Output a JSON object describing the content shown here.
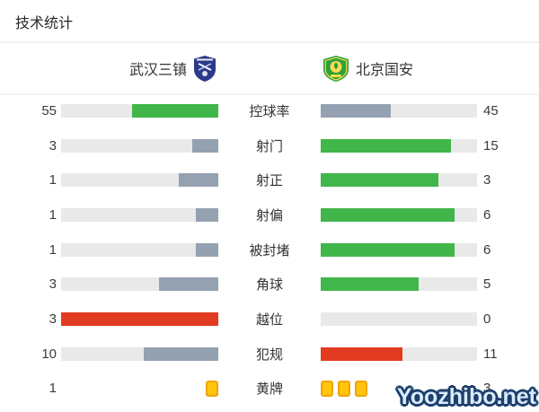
{
  "title": "技术统计",
  "teams": {
    "home": {
      "name": "武汉三镇",
      "badge": "wuhan-three-towns-crest",
      "badge_color": "#2c3a8c"
    },
    "away": {
      "name": "北京国安",
      "badge": "beijing-guoan-crest",
      "badge_color": "#2ba13c"
    }
  },
  "colors": {
    "green": "#41b64a",
    "gray_blue": "#94a1b1",
    "red": "#e13b21",
    "none": "transparent",
    "track": "#e9e9e9",
    "yellow_card_fill": "#ffc50a",
    "yellow_card_border": "#f0a40e"
  },
  "rows": [
    {
      "label": "控球率",
      "home": {
        "value": "55",
        "pct": 55,
        "color": "green"
      },
      "away": {
        "value": "45",
        "pct": 45,
        "color": "gray_blue"
      }
    },
    {
      "label": "射门",
      "home": {
        "value": "3",
        "pct": 16.7,
        "color": "gray_blue"
      },
      "away": {
        "value": "15",
        "pct": 83.3,
        "color": "green"
      }
    },
    {
      "label": "射正",
      "home": {
        "value": "1",
        "pct": 25,
        "color": "gray_blue"
      },
      "away": {
        "value": "3",
        "pct": 75,
        "color": "green"
      }
    },
    {
      "label": "射偏",
      "home": {
        "value": "1",
        "pct": 14.3,
        "color": "gray_blue"
      },
      "away": {
        "value": "6",
        "pct": 85.7,
        "color": "green"
      }
    },
    {
      "label": "被封堵",
      "home": {
        "value": "1",
        "pct": 14.3,
        "color": "gray_blue"
      },
      "away": {
        "value": "6",
        "pct": 85.7,
        "color": "green"
      }
    },
    {
      "label": "角球",
      "home": {
        "value": "3",
        "pct": 37.5,
        "color": "gray_blue"
      },
      "away": {
        "value": "5",
        "pct": 62.5,
        "color": "green"
      }
    },
    {
      "label": "越位",
      "home": {
        "value": "3",
        "pct": 100,
        "color": "red"
      },
      "away": {
        "value": "0",
        "pct": 0,
        "color": "none"
      }
    },
    {
      "label": "犯规",
      "home": {
        "value": "10",
        "pct": 47.6,
        "color": "gray_blue"
      },
      "away": {
        "value": "11",
        "pct": 52.4,
        "color": "red"
      }
    },
    {
      "label": "黄牌",
      "type": "cards",
      "home": {
        "value": "1",
        "cards": 1
      },
      "away": {
        "value": "3",
        "cards": 3
      }
    }
  ],
  "watermark": {
    "text": "Yoozhibo.net"
  },
  "chart_data": {
    "type": "bar",
    "title": "技术统计",
    "categories": [
      "控球率",
      "射门",
      "射正",
      "射偏",
      "被封堵",
      "角球",
      "越位",
      "犯规",
      "黄牌"
    ],
    "series": [
      {
        "name": "武汉三镇",
        "values": [
          55,
          3,
          1,
          1,
          1,
          3,
          3,
          10,
          1
        ]
      },
      {
        "name": "北京国安",
        "values": [
          45,
          15,
          3,
          6,
          6,
          5,
          0,
          11,
          3
        ]
      }
    ],
    "units": {
      "控球率": "%"
    },
    "layout": "mirrored paired horizontal bars; home bars right-anchored on left side, away bars left-anchored on right side; bar length = value / (home + away)",
    "color_coding": "higher value colored green for positive stats, red for 越位/犯规; lower value gray-blue; 黄牌 rendered as yellow card icons instead of bars",
    "legend_position": "top header row with team crests",
    "grid": false
  }
}
